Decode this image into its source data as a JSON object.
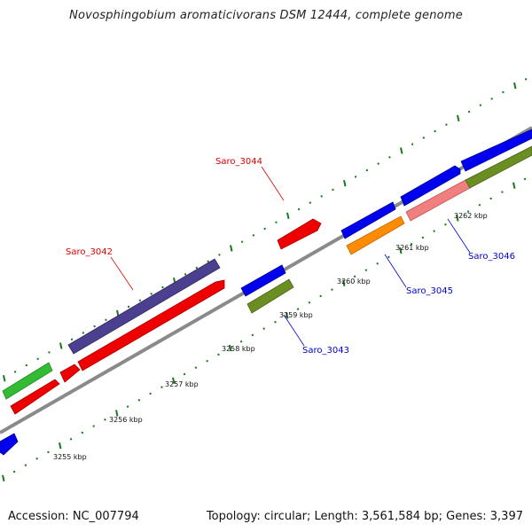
{
  "title": "Novosphingobium aromaticivorans DSM 12444, complete genome",
  "footer": {
    "accession": "Accession: NC_007794",
    "summary": "Topology: circular; Length: 3,561,584 bp; Genes: 3,397"
  },
  "tick_labels": [
    "3255 kbp",
    "3256 kbp",
    "3257 kbp",
    "3258 kbp",
    "3259 kbp",
    "3260 kbp",
    "3261 kbp",
    "3262 kbp"
  ],
  "gene_labels": [
    {
      "text": "Saro_3042",
      "color": "#dd0000"
    },
    {
      "text": "Saro_3044",
      "color": "#dd0000"
    },
    {
      "text": "Saro_3043",
      "color": "#0000cc"
    },
    {
      "text": "Saro_3045",
      "color": "#0000cc"
    },
    {
      "text": "Saro_3046",
      "color": "#0000cc"
    }
  ],
  "colors": {
    "backbone": "#8a8a8a",
    "tick": "#1a7a1a",
    "blue_feature": "#0000ee",
    "red_feature": "#ee0000",
    "slate_feature": "#4b3f8f",
    "green_feature": "#33bb33",
    "olive_feature": "#6b8e23",
    "orange_feature": "#ff8c00",
    "pink_feature": "#f08080"
  }
}
